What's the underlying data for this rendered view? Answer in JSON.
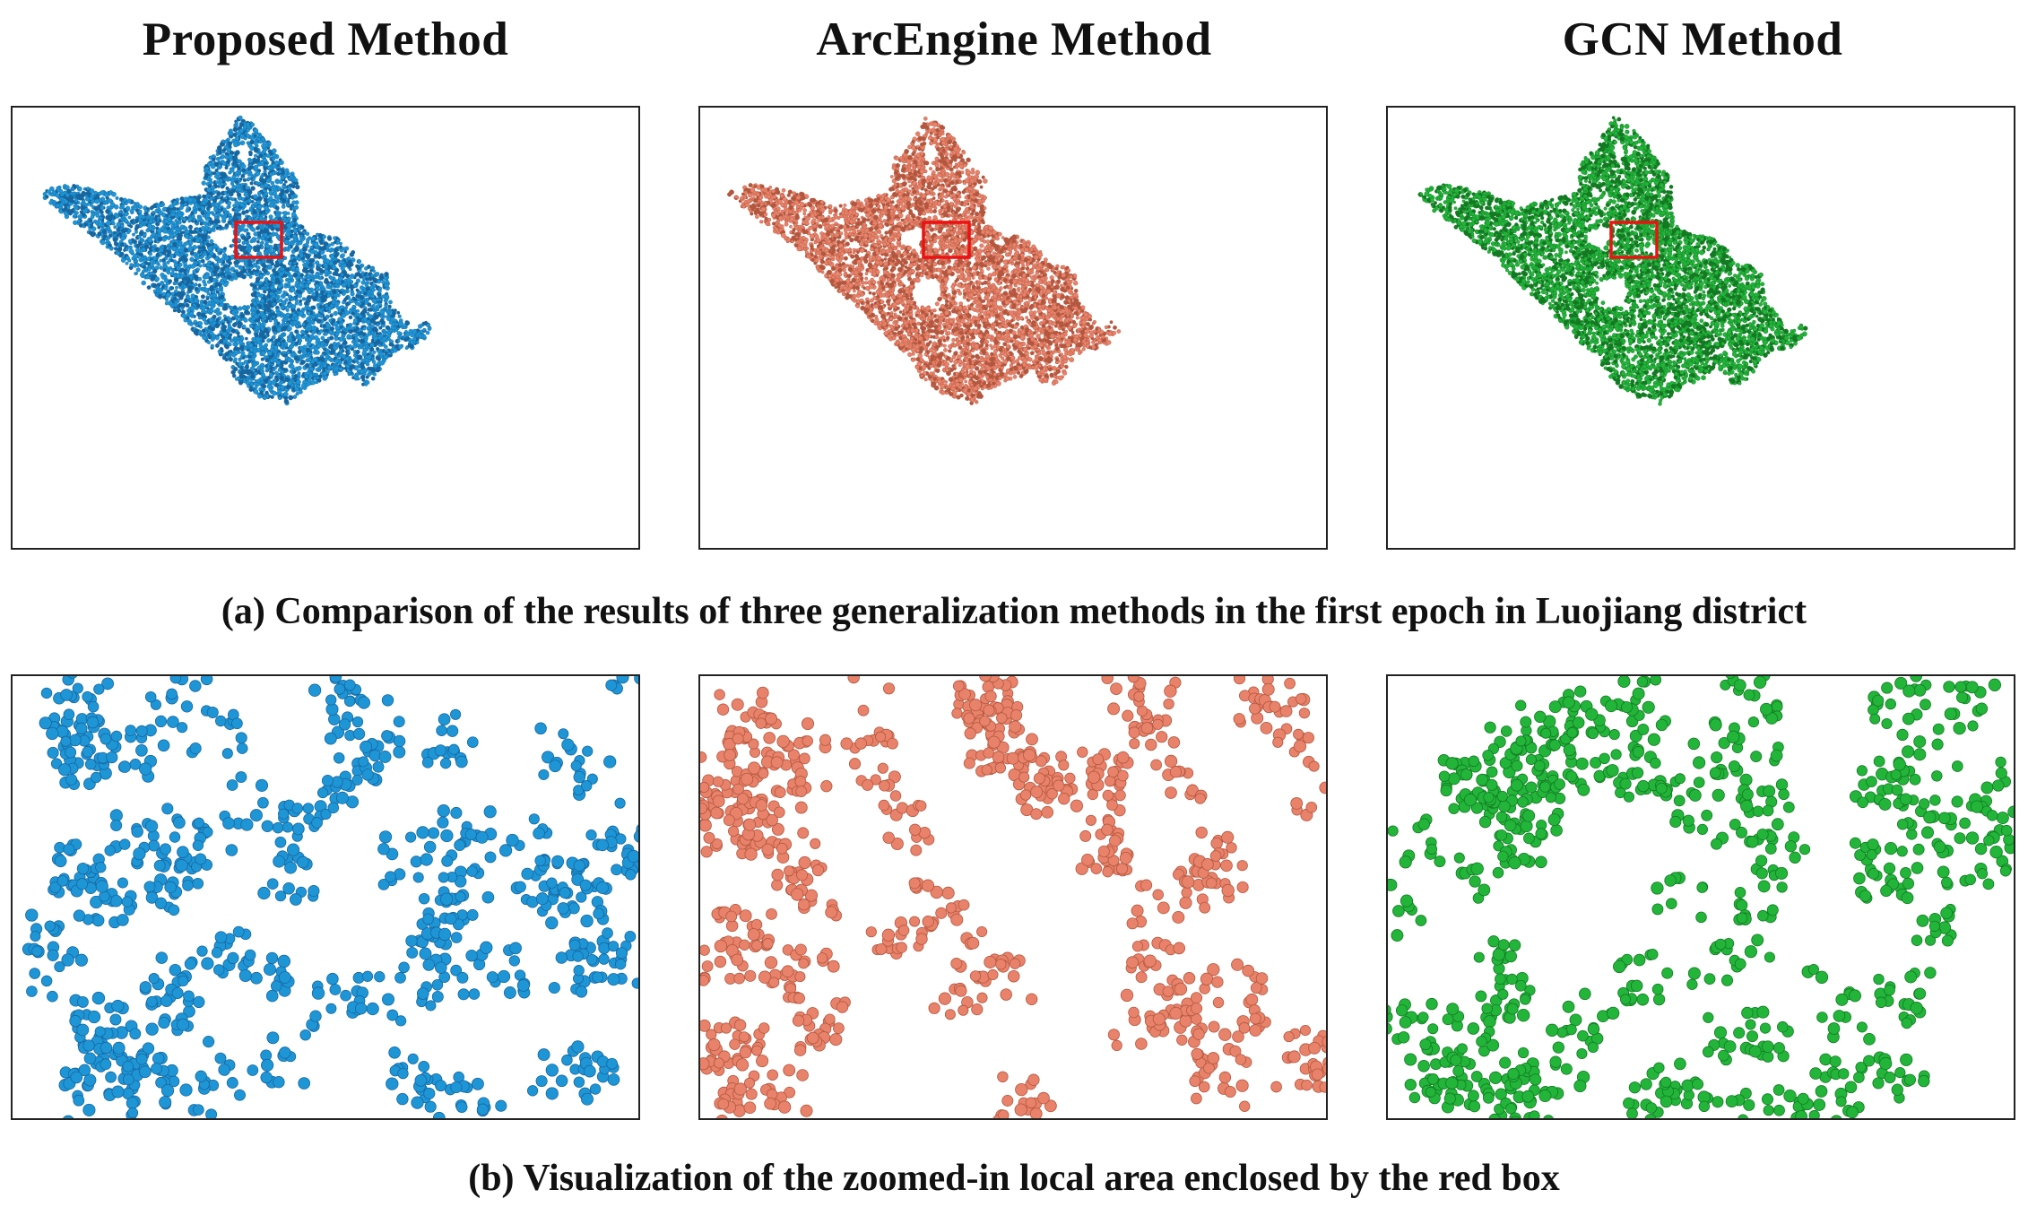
{
  "titles": {
    "proposed": "Proposed Method",
    "arcengine": "ArcEngine Method",
    "gcn": "GCN Method"
  },
  "captions": {
    "a": "(a) Comparison of the results of three generalization methods in the first epoch in Luojiang district",
    "b": "(b) Visualization of the zoomed-in local area enclosed by the red box"
  },
  "colors": {
    "proposed_fill": "#1e96d6",
    "proposed_dark": "#1766a0",
    "arcengine_fill": "#e8826a",
    "arcengine_dark": "#b4573f",
    "gcn_fill": "#22b53a",
    "gcn_dark": "#137a22",
    "highlight_box": "#ee1111",
    "frame": "#222222"
  }
}
